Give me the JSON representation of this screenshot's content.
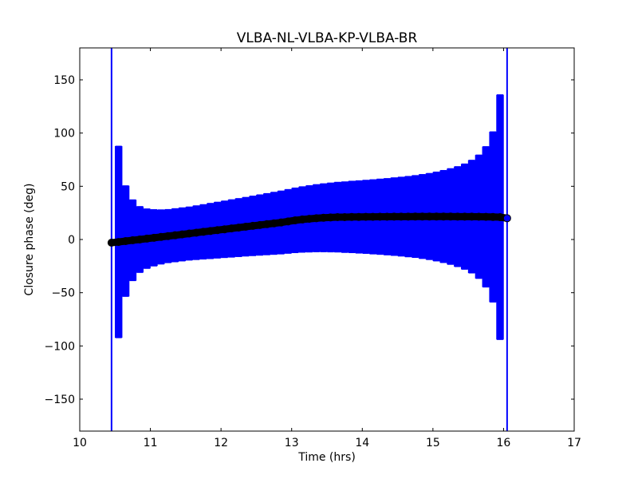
{
  "chart_data": {
    "type": "scatter",
    "title": "VLBA-NL-VLBA-KP-VLBA-BR",
    "xlabel": "Time (hrs)",
    "ylabel": "Closure phase (deg)",
    "xlim": [
      10,
      17
    ],
    "ylim": [
      -180,
      180
    ],
    "xticks": [
      "10",
      "11",
      "12",
      "13",
      "14",
      "15",
      "16",
      "17"
    ],
    "yticks": [
      "−150",
      "−100",
      "−50",
      "0",
      "50",
      "100",
      "150"
    ],
    "ytick_values": [
      -150,
      -100,
      -50,
      0,
      50,
      100,
      150
    ],
    "grid": false,
    "marker_color": "#000000",
    "errorbar_color": "#0000ff",
    "x": [
      10.45,
      10.55,
      10.65,
      10.75,
      10.85,
      10.95,
      11.05,
      11.15,
      11.25,
      11.35,
      11.45,
      11.55,
      11.65,
      11.75,
      11.85,
      11.95,
      12.05,
      12.15,
      12.25,
      12.35,
      12.45,
      12.55,
      12.65,
      12.75,
      12.85,
      12.95,
      13.05,
      13.15,
      13.25,
      13.35,
      13.45,
      13.55,
      13.65,
      13.75,
      13.85,
      13.95,
      14.05,
      14.15,
      14.25,
      14.35,
      14.45,
      14.55,
      14.65,
      14.75,
      14.85,
      14.95,
      15.05,
      15.15,
      15.25,
      15.35,
      15.45,
      15.55,
      15.65,
      15.75,
      15.85,
      15.95,
      16.05
    ],
    "y": [
      -3,
      -2.3,
      -1.5,
      -0.7,
      0,
      0.8,
      1.6,
      2.4,
      3.2,
      4,
      4.8,
      5.6,
      6.4,
      7.2,
      8,
      8.8,
      9.6,
      10.4,
      11.2,
      12,
      12.8,
      13.6,
      14.4,
      15.2,
      16,
      17,
      18,
      18.8,
      19.4,
      20,
      20.4,
      20.7,
      21,
      21,
      21.2,
      21.2,
      21.3,
      21.3,
      21.4,
      21.4,
      21.5,
      21.5,
      21.5,
      21.6,
      21.6,
      21.6,
      21.6,
      21.6,
      21.6,
      21.5,
      21.5,
      21.5,
      21.4,
      21.3,
      21.2,
      21,
      20
    ],
    "yerr": [
      220,
      90,
      52,
      38,
      31,
      28,
      26.5,
      25.5,
      25,
      25,
      25,
      25,
      25.3,
      25.6,
      26,
      26.3,
      26.6,
      27,
      27.3,
      27.6,
      28,
      28.4,
      28.8,
      29.2,
      29.6,
      30,
      30.4,
      30.8,
      31.2,
      31.6,
      32,
      32.4,
      32.8,
      33.2,
      33.6,
      34,
      34.4,
      34.9,
      35.4,
      35.9,
      36.5,
      37.1,
      37.8,
      38.5,
      39.5,
      40.5,
      41.8,
      43.3,
      45,
      47,
      49.5,
      53,
      58,
      66,
      80,
      115,
      250
    ]
  }
}
